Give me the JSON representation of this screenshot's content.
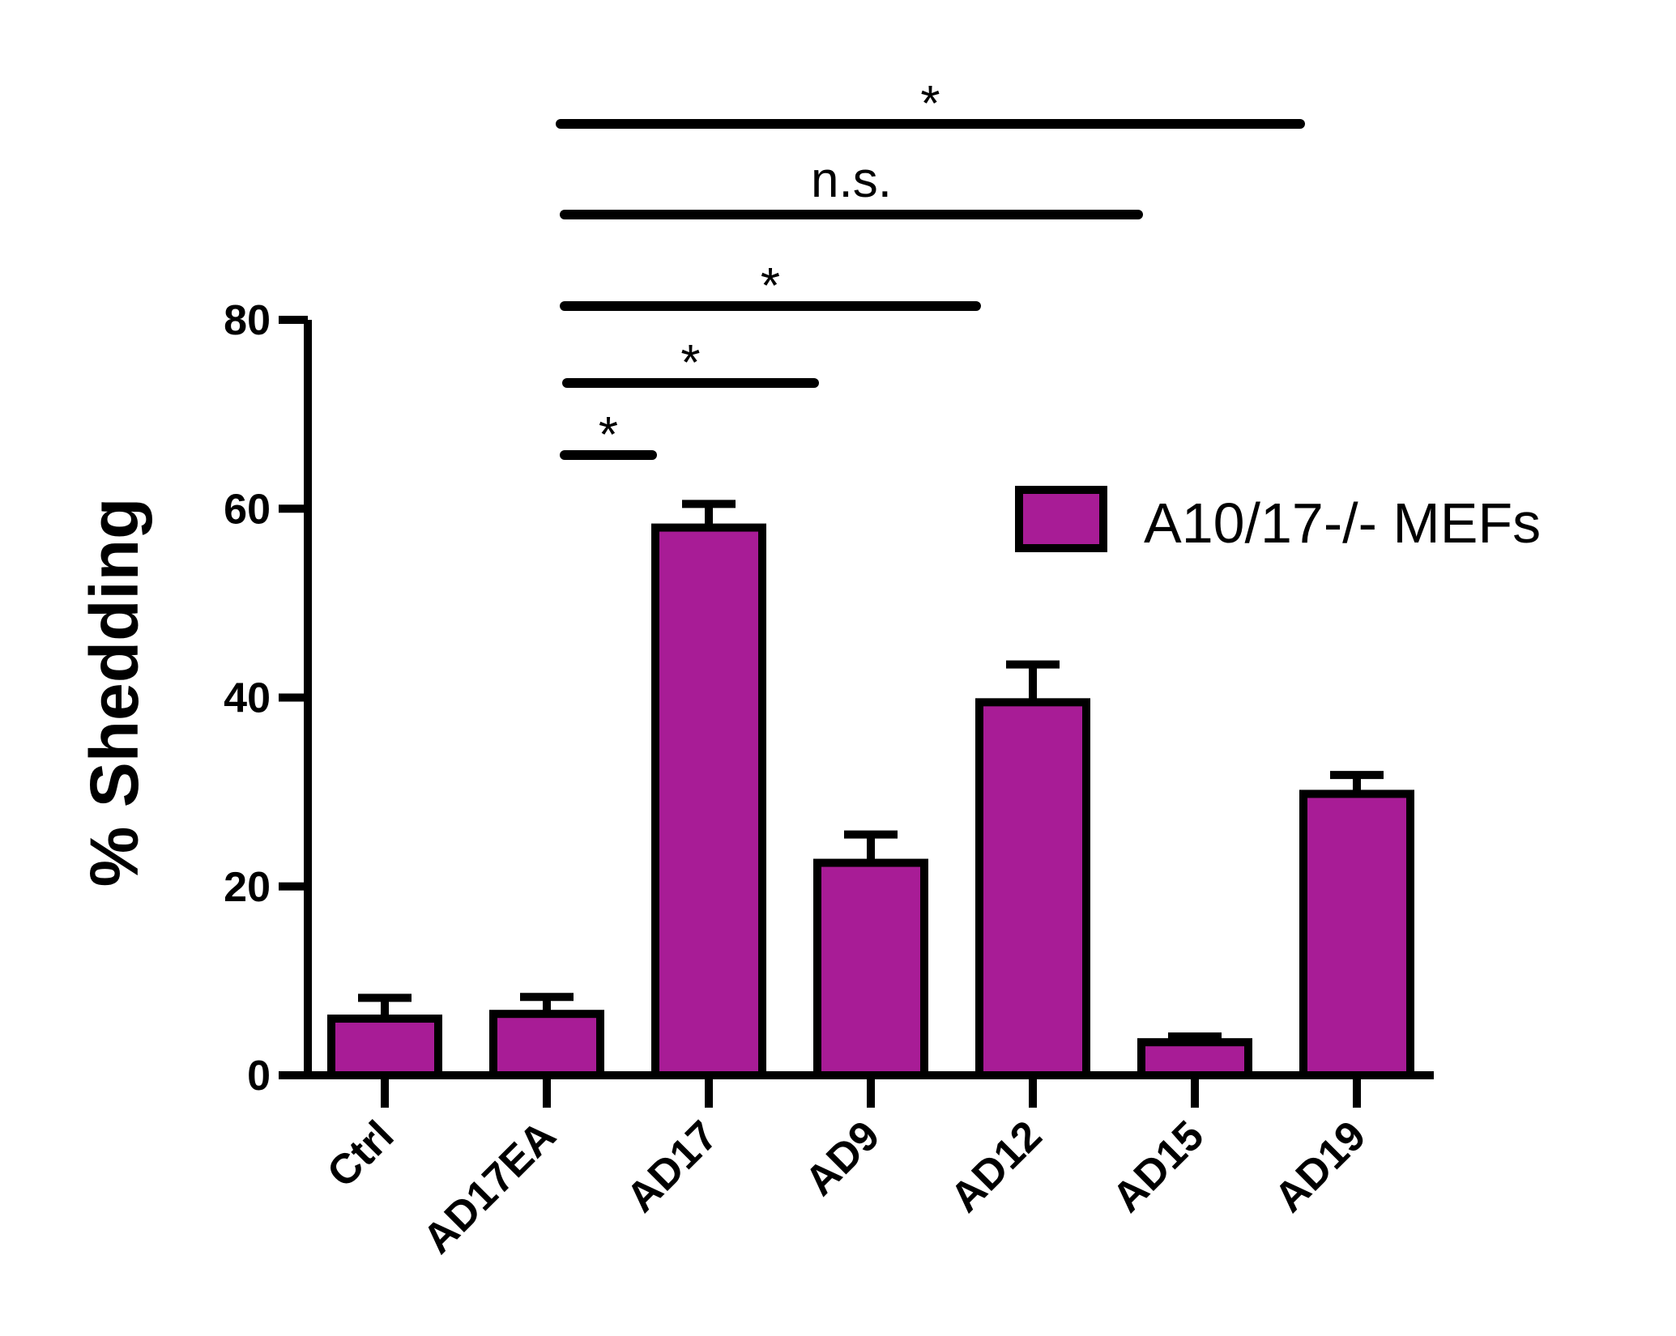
{
  "chart_data": {
    "type": "bar",
    "title": "",
    "xlabel": "",
    "ylabel": "% Shedding",
    "ylim": [
      0,
      80
    ],
    "yticks": [
      "0",
      "20",
      "40",
      "60",
      "80"
    ],
    "categories": [
      "Ctrl",
      "AD17EA",
      "AD17",
      "AD9",
      "AD12",
      "AD15",
      "AD19"
    ],
    "series": [
      {
        "name": "A10/17-/- MEFs",
        "values": [
          6.0,
          6.5,
          58.0,
          22.5,
          39.5,
          3.5,
          29.8
        ],
        "errors": [
          2.2,
          1.8,
          2.5,
          3.0,
          4.0,
          0.6,
          2.0
        ]
      }
    ],
    "legend": {
      "label": "A10/17-/- MEFs",
      "position": "top-right"
    },
    "significance": [
      {
        "from": "AD17EA",
        "to": "AD17",
        "label": "*"
      },
      {
        "from": "AD17EA",
        "to": "AD9",
        "label": "*"
      },
      {
        "from": "AD17EA",
        "to": "AD12",
        "label": "*"
      },
      {
        "from": "AD17EA",
        "to": "AD15",
        "label": "n.s."
      },
      {
        "from": "AD17EA",
        "to": "AD19",
        "label": "*"
      }
    ],
    "colors": {
      "bar": "#a81c96",
      "stroke": "#000000"
    }
  }
}
